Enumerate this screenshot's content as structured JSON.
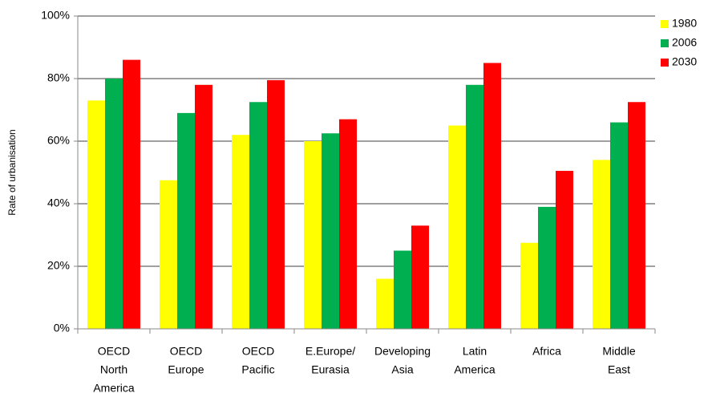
{
  "chart_data": {
    "type": "bar",
    "y_label": "Rate of urbanisation",
    "categories": [
      [
        "OECD",
        "North",
        "America"
      ],
      [
        "OECD",
        "Europe"
      ],
      [
        "OECD",
        "Pacific"
      ],
      [
        "E.Europe/",
        "Eurasia"
      ],
      [
        "Developing",
        "Asia"
      ],
      [
        "Latin",
        "America"
      ],
      [
        "Africa"
      ],
      [
        "Middle",
        "East"
      ]
    ],
    "series": [
      {
        "name": "1980",
        "color": "#ffff00",
        "values": [
          73,
          47.5,
          62,
          60,
          16,
          65,
          27.5,
          54
        ]
      },
      {
        "name": "2006",
        "color": "#00b050",
        "values": [
          80,
          69,
          72.5,
          62.5,
          25,
          78,
          39,
          66
        ]
      },
      {
        "name": "2030",
        "color": "#ff0000",
        "values": [
          86,
          78,
          79.5,
          67,
          33,
          85,
          50.5,
          72.5
        ]
      }
    ],
    "ylim": [
      0,
      100
    ],
    "yticks": [
      {
        "value": 0,
        "label": "0%"
      },
      {
        "value": 20,
        "label": "20%"
      },
      {
        "value": 40,
        "label": "40%"
      },
      {
        "value": 60,
        "label": "60%"
      },
      {
        "value": 80,
        "label": "80%"
      },
      {
        "value": 100,
        "label": "100%"
      }
    ],
    "grid": true,
    "legend": "right"
  }
}
